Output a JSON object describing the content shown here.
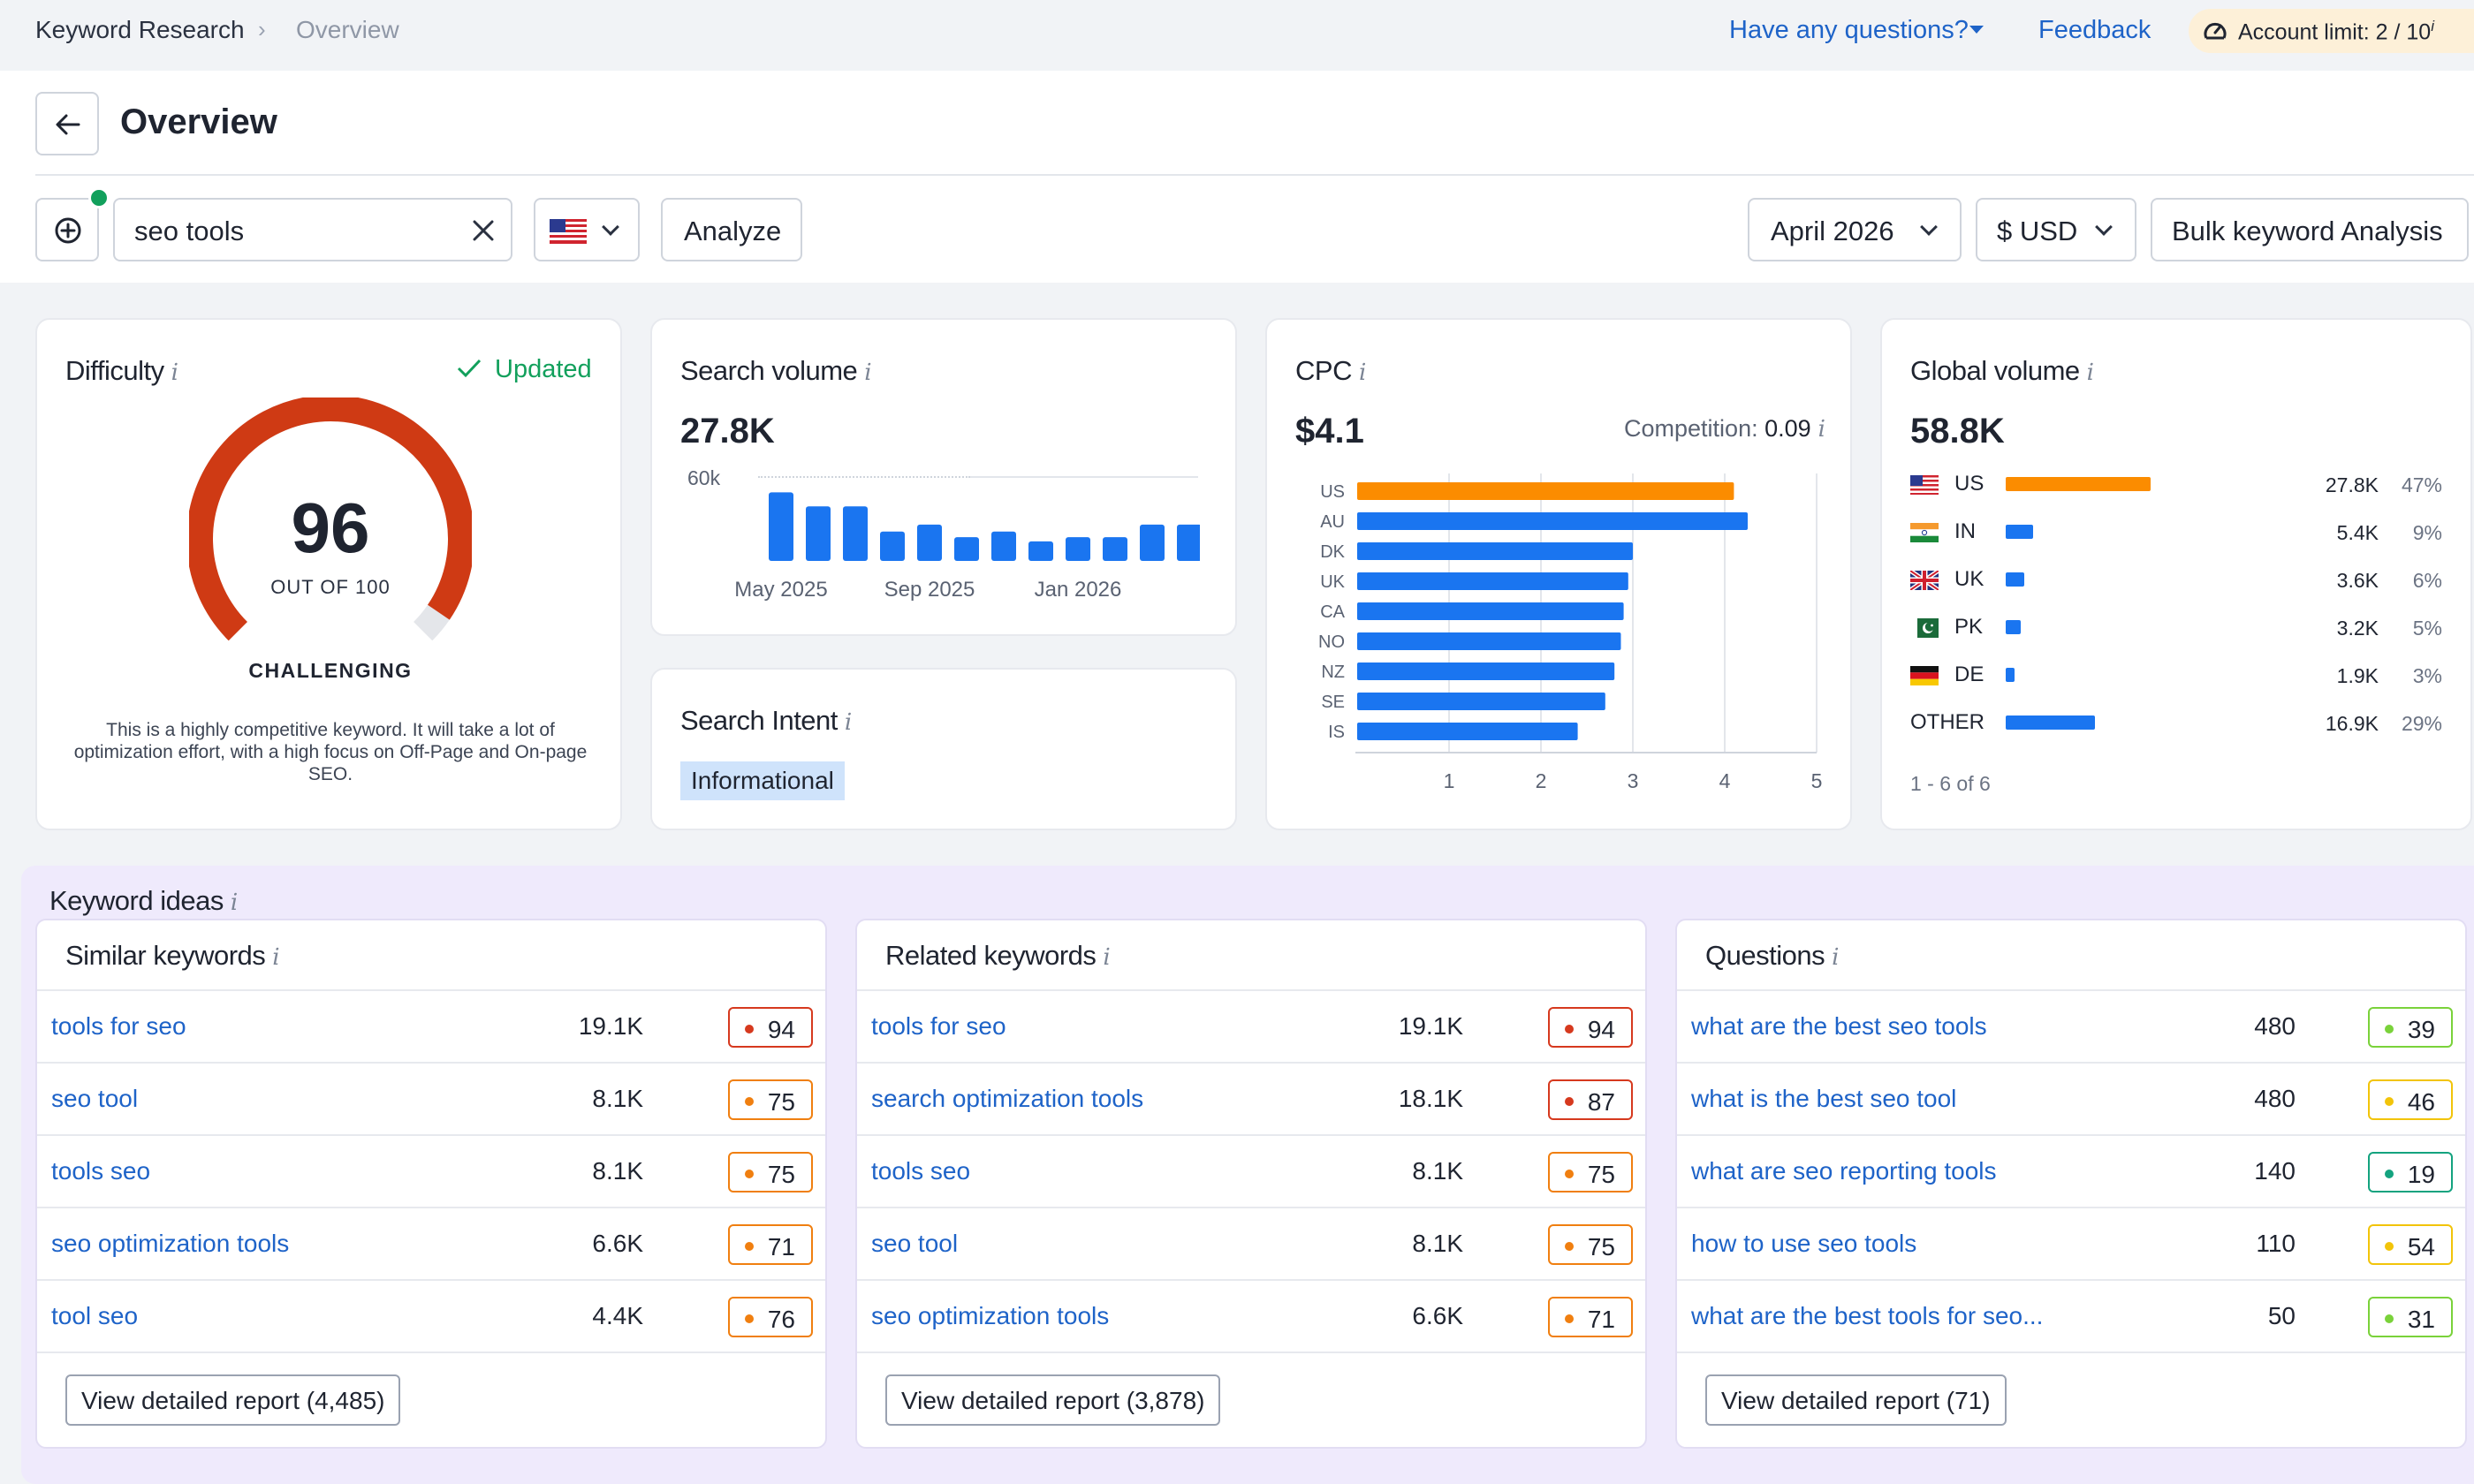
{
  "breadcrumb": {
    "root": "Keyword Research",
    "current": "Overview"
  },
  "topbar": {
    "questions": "Have any questions?",
    "feedback": "Feedback",
    "limit_label": "Account limit:",
    "limit_value": "2 / 10",
    "limit_info": "i"
  },
  "page": {
    "title": "Overview"
  },
  "search": {
    "value": "seo tools",
    "analyze": "Analyze",
    "month": "April 2026",
    "currency": "$ USD",
    "bulk": "Bulk keyword Analysis"
  },
  "info": "i",
  "difficulty": {
    "title": "Difficulty",
    "status": "Updated",
    "score": "96",
    "scale": "OUT OF 100",
    "level": "CHALLENGING",
    "description": "This is a highly competitive keyword. It will take a lot of optimization effort, with a high focus on Off-Page and On-page SEO.",
    "fraction": 0.96
  },
  "search_volume": {
    "title": "Search volume",
    "value": "27.8K",
    "y_tick": "60k",
    "x_ticks": [
      "May 2025",
      "Sep 2025",
      "Jan 2026"
    ],
    "chart_data": {
      "type": "bar",
      "categories": [
        "May 2025",
        "Jun 2025",
        "Jul 2025",
        "Aug 2025",
        "Sep 2025",
        "Oct 2025",
        "Nov 2025",
        "Dec 2025",
        "Jan 2026",
        "Feb 2026",
        "Mar 2026",
        "Apr 2026"
      ],
      "values": [
        49000,
        39000,
        39000,
        21000,
        26000,
        17000,
        21000,
        14000,
        17000,
        17000,
        26000,
        26000
      ],
      "ylim": [
        0,
        60000
      ]
    }
  },
  "intent": {
    "title": "Search Intent",
    "value": "Informational"
  },
  "cpc": {
    "title": "CPC",
    "value": "$4.1",
    "competition_label": "Competition:",
    "competition_value": "0.09",
    "chart_data": {
      "type": "bar",
      "orientation": "horizontal",
      "categories": [
        "US",
        "AU",
        "DK",
        "UK",
        "CA",
        "NO",
        "NZ",
        "SE",
        "IS"
      ],
      "values": [
        4.1,
        4.25,
        3.0,
        2.95,
        2.9,
        2.87,
        2.8,
        2.7,
        2.4
      ],
      "xlim": [
        0,
        5
      ],
      "x_ticks": [
        "1",
        "2",
        "3",
        "4",
        "5"
      ],
      "highlight": "US",
      "colors": {
        "highlight": "#fb8c00",
        "default": "#1a75f0"
      }
    }
  },
  "global": {
    "title": "Global volume",
    "value": "58.8K",
    "pagination": "1 - 6 of 6",
    "rows": [
      {
        "code": "US",
        "volume": "27.8K",
        "pct": "47%",
        "share": 0.47
      },
      {
        "code": "IN",
        "volume": "5.4K",
        "pct": "9%",
        "share": 0.09
      },
      {
        "code": "UK",
        "volume": "3.6K",
        "pct": "6%",
        "share": 0.06
      },
      {
        "code": "PK",
        "volume": "3.2K",
        "pct": "5%",
        "share": 0.05
      },
      {
        "code": "DE",
        "volume": "1.9K",
        "pct": "3%",
        "share": 0.03
      },
      {
        "code": "OTHER",
        "volume": "16.9K",
        "pct": "29%",
        "share": 0.29
      }
    ]
  },
  "ideas": {
    "title": "Keyword ideas",
    "panels": [
      {
        "title": "Similar keywords",
        "report": "View detailed report (4,485)",
        "rows": [
          {
            "kw": "tools for seo",
            "vol": "19.1K",
            "kd": "94",
            "color": "#d6391e"
          },
          {
            "kw": "seo tool",
            "vol": "8.1K",
            "kd": "75",
            "color": "#f07f10"
          },
          {
            "kw": "tools seo",
            "vol": "8.1K",
            "kd": "75",
            "color": "#f07f10"
          },
          {
            "kw": "seo optimization tools",
            "vol": "6.6K",
            "kd": "71",
            "color": "#f07f10"
          },
          {
            "kw": "tool seo",
            "vol": "4.4K",
            "kd": "76",
            "color": "#f07f10"
          }
        ]
      },
      {
        "title": "Related keywords",
        "report": "View detailed report (3,878)",
        "rows": [
          {
            "kw": "tools for seo",
            "vol": "19.1K",
            "kd": "94",
            "color": "#d6391e"
          },
          {
            "kw": "search optimization tools",
            "vol": "18.1K",
            "kd": "87",
            "color": "#d6391e"
          },
          {
            "kw": "tools seo",
            "vol": "8.1K",
            "kd": "75",
            "color": "#f07f10"
          },
          {
            "kw": "seo tool",
            "vol": "8.1K",
            "kd": "75",
            "color": "#f07f10"
          },
          {
            "kw": "seo optimization tools",
            "vol": "6.6K",
            "kd": "71",
            "color": "#f07f10"
          }
        ]
      },
      {
        "title": "Questions",
        "report": "View detailed report (71)",
        "rows": [
          {
            "kw": "what are the best seo tools",
            "vol": "480",
            "kd": "39",
            "color": "#7ad23a"
          },
          {
            "kw": "what is the best seo tool",
            "vol": "480",
            "kd": "46",
            "color": "#f2c40a"
          },
          {
            "kw": "what are seo reporting tools",
            "vol": "140",
            "kd": "19",
            "color": "#14a37f"
          },
          {
            "kw": "how to use seo tools",
            "vol": "110",
            "kd": "54",
            "color": "#f2c40a"
          },
          {
            "kw": "what are the best tools for seo...",
            "vol": "50",
            "kd": "31",
            "color": "#7ad23a"
          }
        ]
      }
    ]
  }
}
